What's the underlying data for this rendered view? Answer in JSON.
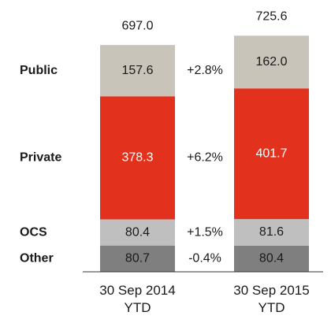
{
  "chart_data": {
    "type": "stacked_bar",
    "categories": [
      "30 Sep 2014 YTD",
      "30 Sep 2015 YTD"
    ],
    "totals": [
      697,
      725.6
    ],
    "total_labels": [
      "697.0",
      "725.6"
    ],
    "series": [
      {
        "name": "Other",
        "color": "#7f7f7f",
        "values": [
          80.7,
          80.4
        ],
        "change": "-0.4%"
      },
      {
        "name": "OCS",
        "color": "#bfbfbf",
        "values": [
          80.4,
          81.6
        ],
        "change": "+1.5%"
      },
      {
        "name": "Private",
        "color": "#e2311d",
        "values": [
          378.3,
          401.7
        ],
        "change": "+6.2%"
      },
      {
        "name": "Public",
        "color": "#c9c4ba",
        "values": [
          157.6,
          162
        ],
        "value_labels": [
          "157.6",
          "162.0"
        ],
        "change": "+2.8%"
      }
    ]
  }
}
